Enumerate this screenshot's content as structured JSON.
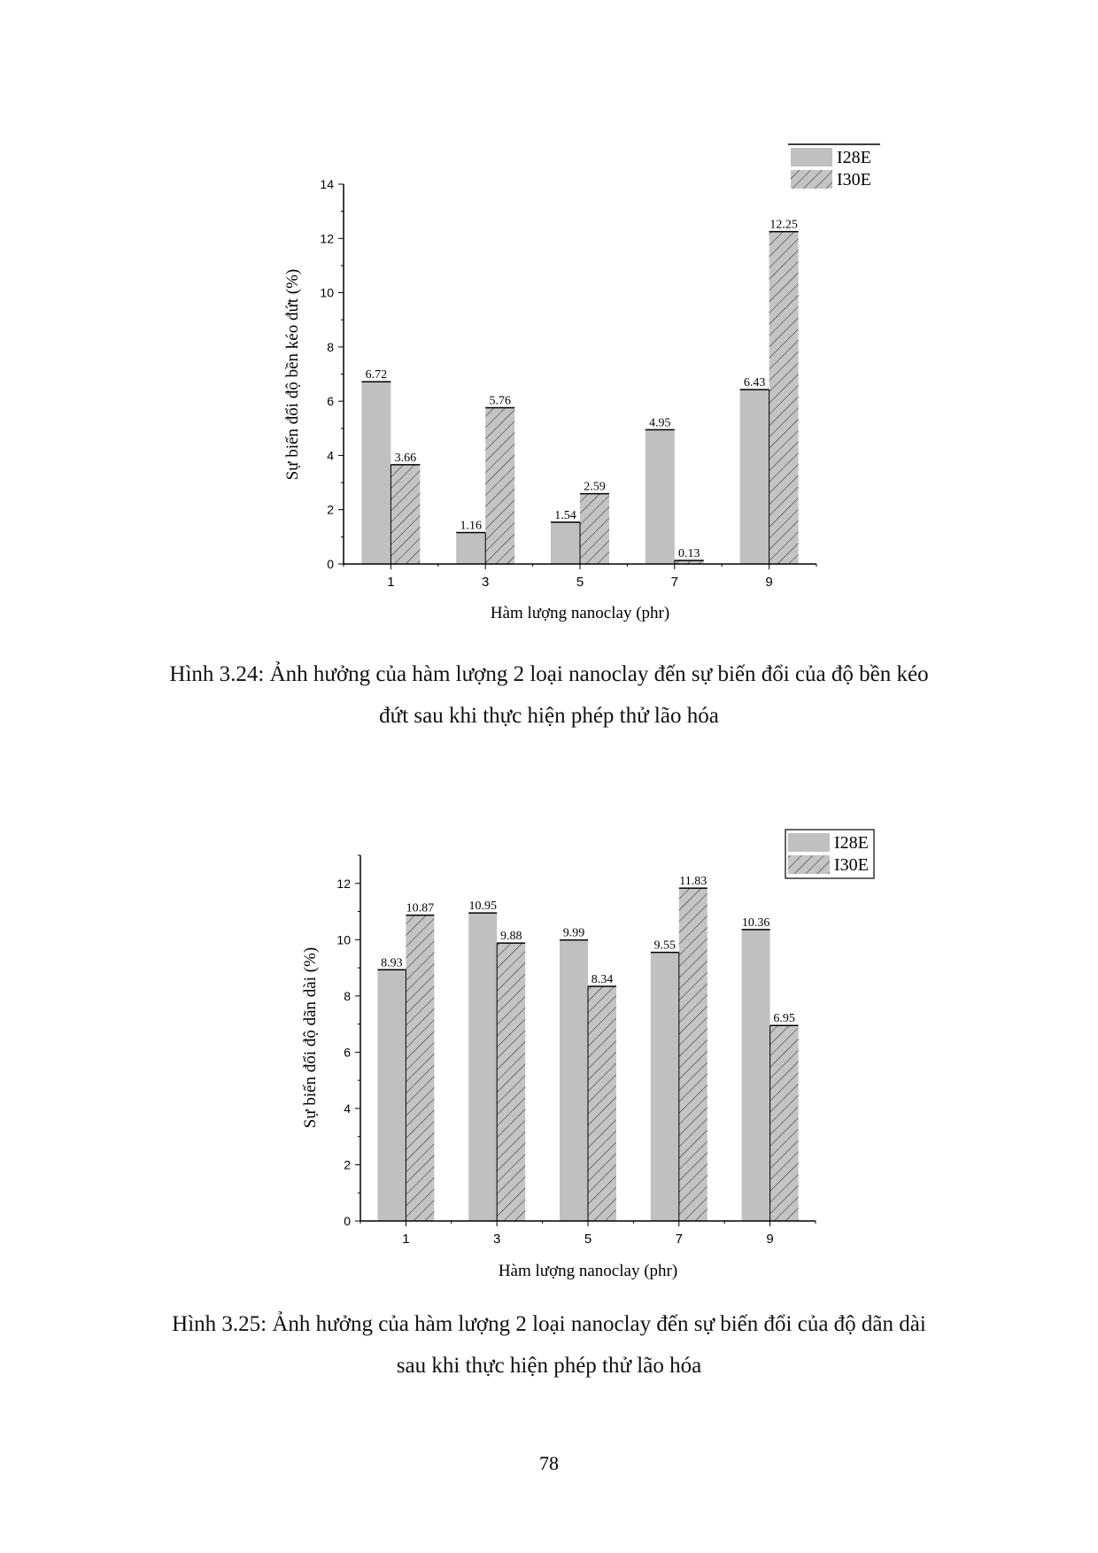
{
  "chart_data": [
    {
      "type": "bar",
      "title": "",
      "xlabel": "Hàm lượng nanoclay (phr)",
      "ylabel": "Sự biến đổi độ bền kéo đứt (%)",
      "categories": [
        "1",
        "3",
        "5",
        "7",
        "9"
      ],
      "x": [
        1,
        3,
        5,
        7,
        9
      ],
      "xlim": [
        0,
        10
      ],
      "ylim": [
        0,
        14
      ],
      "yticks": [
        0,
        2,
        4,
        6,
        8,
        10,
        12,
        14
      ],
      "grid": false,
      "legend_position": "top-right",
      "series": [
        {
          "name": "I28E",
          "values": [
            6.72,
            1.16,
            1.54,
            4.95,
            6.43
          ],
          "labels": [
            "6.72",
            "1.16",
            "1.54",
            "4.95",
            "6.43"
          ],
          "fill": "#c0c0c0",
          "pattern": "solid"
        },
        {
          "name": "I30E",
          "values": [
            3.66,
            5.76,
            2.59,
            0.13,
            12.25
          ],
          "labels": [
            "3.66",
            "5.76",
            "2.59",
            "0.13",
            "12.25"
          ],
          "fill": "#c0c0c0",
          "pattern": "diagonal-hatch"
        }
      ]
    },
    {
      "type": "bar",
      "title": "",
      "xlabel": "Hàm lượng nanoclay (phr)",
      "ylabel": "Sự biến đổi độ dãn dài (%)",
      "categories": [
        "1",
        "3",
        "5",
        "7",
        "9"
      ],
      "x": [
        1,
        3,
        5,
        7,
        9
      ],
      "xlim": [
        0,
        10
      ],
      "ylim": [
        0,
        13
      ],
      "yticks": [
        0,
        2,
        4,
        6,
        8,
        10,
        12
      ],
      "grid": false,
      "legend_position": "top-right",
      "series": [
        {
          "name": "I28E",
          "values": [
            8.93,
            10.95,
            9.99,
            9.55,
            10.36
          ],
          "labels": [
            "8.93",
            "10.95",
            "9.99",
            "9.55",
            "10.36"
          ],
          "fill": "#c0c0c0",
          "pattern": "solid"
        },
        {
          "name": "I30E",
          "values": [
            10.87,
            9.88,
            8.34,
            11.83,
            6.95
          ],
          "labels": [
            "10.87",
            "9.88",
            "8.34",
            "11.83",
            "6.95"
          ],
          "fill": "#c0c0c0",
          "pattern": "diagonal-hatch"
        }
      ]
    }
  ],
  "captions": {
    "fig1_line1": "Hình 3.24: Ảnh hưởng của hàm lượng 2 loại nanoclay đến sự biến đổi của độ bền kéo",
    "fig1_line2": "đứt sau khi thực hiện phép thử lão hóa",
    "fig2_line1": "Hình 3.25: Ảnh hưởng của hàm lượng 2 loại nanoclay đến sự biến đổi của độ dãn dài",
    "fig2_line2": "sau khi thực hiện phép thử lão hóa"
  },
  "page_number": "78"
}
